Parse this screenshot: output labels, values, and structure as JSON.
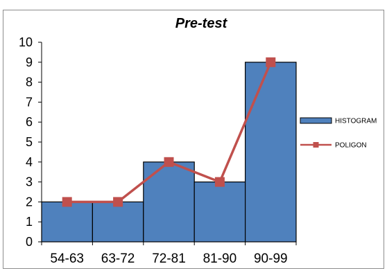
{
  "chart_data": {
    "type": "bar",
    "title": "Pre-test",
    "xlabel": "",
    "ylabel": "",
    "categories": [
      "54-63",
      "63-72",
      "72-81",
      "81-90",
      "90-99"
    ],
    "ylim": [
      0,
      10
    ],
    "yticks": [
      "0",
      "1",
      "2",
      "3",
      "4",
      "5",
      "6",
      "7",
      "8",
      "9",
      "10"
    ],
    "grid": false,
    "legend_position": "right",
    "series": [
      {
        "name": "HISTOGRAM",
        "kind": "bar",
        "values": [
          2,
          2,
          4,
          3,
          9
        ],
        "color": "#4f81bd",
        "edge_color": "#000000"
      },
      {
        "name": "POLIGON",
        "kind": "line",
        "values": [
          2,
          2,
          4,
          3,
          9
        ],
        "color": "#c0504d",
        "marker": "square"
      }
    ]
  }
}
